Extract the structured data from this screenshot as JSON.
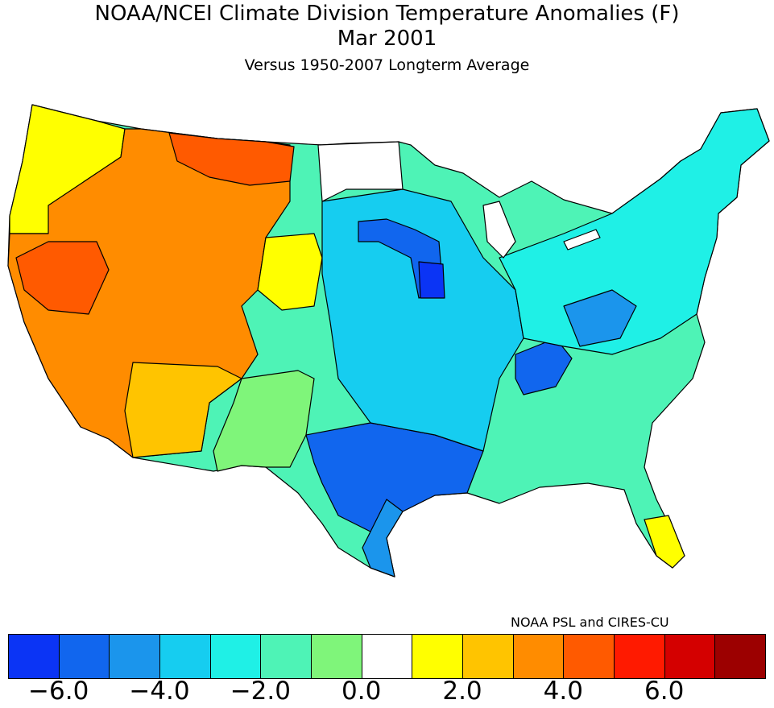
{
  "title": "NOAA/NCEI Climate Division Temperature Anomalies (F)",
  "period": "Mar 2001",
  "subtitle": "Versus 1950-2007 Longterm Average",
  "credit": "NOAA PSL and CIRES-CU",
  "legend": {
    "colors": [
      "#0b34f5",
      "#1166ee",
      "#1b95ec",
      "#16cdf0",
      "#1ff0e6",
      "#4ef3b6",
      "#7ff57a",
      "#ffffff",
      "#ffff00",
      "#ffc400",
      "#ff8c00",
      "#ff5a00",
      "#ff1a00",
      "#d40000",
      "#9c0000"
    ],
    "tick_labels": [
      "-6.0",
      "-4.0",
      "-2.0",
      "0.0",
      "2.0",
      "4.0",
      "6.0"
    ]
  },
  "regions": [
    {
      "name": "Pacific Northwest coast",
      "anomaly": "1.0 to 2.0"
    },
    {
      "name": "Great Basin / Nevada",
      "anomaly": "4.0 to 5.0"
    },
    {
      "name": "California and Southwest",
      "anomaly": "3.0 to 4.0"
    },
    {
      "name": "Northern Rockies / Montana",
      "anomaly": "3.0 to 5.0"
    },
    {
      "name": "Front Range / High Plains",
      "anomaly": "0.0 to 2.0"
    },
    {
      "name": "West Texas / New Mexico",
      "anomaly": "-1.0 to -2.0"
    },
    {
      "name": "Texas / Gulf Coast",
      "anomaly": "-4.0 to -5.0"
    },
    {
      "name": "Iowa / Upper Midwest",
      "anomaly": "-5.0 to -6.0"
    },
    {
      "name": "Tennessee Valley",
      "anomaly": "-4.0 to -5.0"
    },
    {
      "name": "Ohio Valley / Northeast",
      "anomaly": "-2.0 to -3.0"
    },
    {
      "name": "Great Lakes / Southeast coast",
      "anomaly": "-1.0 to -2.0"
    },
    {
      "name": "South Florida",
      "anomaly": "0.0 to 1.0"
    }
  ]
}
